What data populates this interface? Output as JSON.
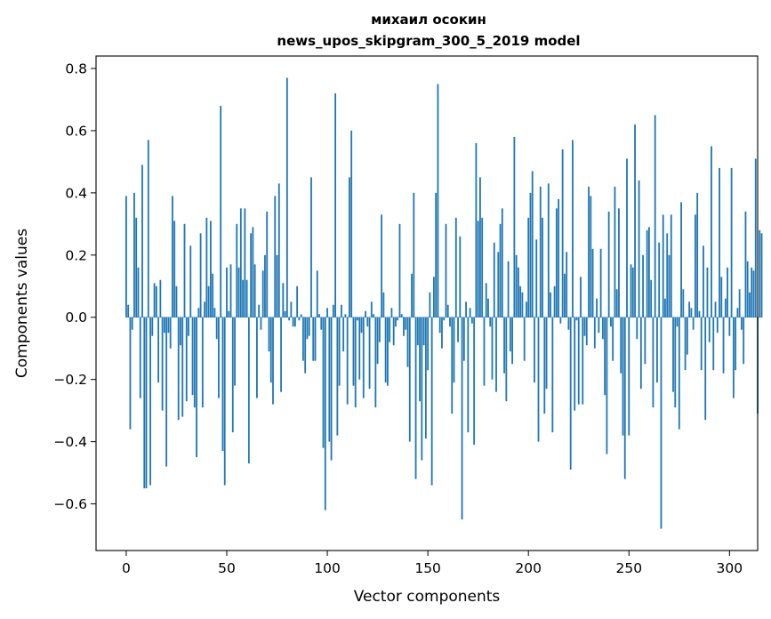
{
  "chart_data": {
    "type": "bar",
    "title": "михаил осокин",
    "subtitle": "news_upos_skipgram_300_5_2019 model",
    "xlabel": "Vector components",
    "ylabel": "Components values",
    "xlim": [
      -15,
      314
    ],
    "ylim": [
      -0.75,
      0.84
    ],
    "xticks": [
      0,
      50,
      100,
      150,
      200,
      250,
      300
    ],
    "xtick_labels": [
      "0",
      "50",
      "100",
      "150",
      "200",
      "250",
      "300"
    ],
    "yticks": [
      -0.6,
      -0.4,
      -0.2,
      0.0,
      0.2,
      0.4,
      0.6,
      0.8
    ],
    "ytick_labels": [
      "−0.6",
      "−0.4",
      "−0.2",
      "0.0",
      "0.2",
      "0.4",
      "0.6",
      "0.8"
    ],
    "grid": false,
    "bar_color": "#1f77b4",
    "series": [
      {
        "values": [
          0.39,
          0.04,
          -0.36,
          -0.04,
          0.4,
          0.32,
          0.16,
          -0.26,
          0.49,
          -0.55,
          -0.55,
          0.57,
          -0.54,
          -0.06,
          0.11,
          0.1,
          -0.21,
          0.12,
          -0.3,
          -0.05,
          -0.48,
          -0.05,
          -0.1,
          0.39,
          0.31,
          0.1,
          -0.33,
          -0.09,
          -0.32,
          0.3,
          -0.27,
          -0.06,
          0.23,
          -0.25,
          -0.29,
          -0.45,
          0.03,
          0.27,
          -0.29,
          0.05,
          0.32,
          0.1,
          0.31,
          0.14,
          0.03,
          -0.07,
          -0.26,
          0.68,
          -0.43,
          -0.54,
          0.16,
          0.02,
          0.17,
          -0.37,
          -0.22,
          0.3,
          0.16,
          0.35,
          0.12,
          0.35,
          0.12,
          -0.47,
          0.27,
          0.29,
          0.17,
          -0.26,
          0.04,
          -0.04,
          0.15,
          0.2,
          0.34,
          -0.11,
          -0.21,
          -0.28,
          0.39,
          0.2,
          0.43,
          -0.24,
          0.11,
          0.02,
          0.77,
          -0.01,
          0.05,
          -0.03,
          -0.03,
          0.1,
          -0.01,
          0.01,
          -0.14,
          -0.18,
          -0.07,
          -0.06,
          0.45,
          -0.14,
          -0.14,
          0.15,
          0.01,
          -0.04,
          -0.42,
          -0.62,
          0.03,
          -0.4,
          -0.46,
          0.04,
          0.72,
          -0.38,
          -0.22,
          0.04,
          -0.11,
          0.01,
          -0.28,
          0.45,
          0.6,
          -0.22,
          -0.29,
          -0.01,
          -0.2,
          -0.05,
          -0.26,
          0.02,
          -0.03,
          -0.23,
          0.05,
          0.01,
          -0.29,
          -0.15,
          -0.08,
          0.33,
          0.08,
          -0.21,
          -0.22,
          -0.08,
          0.03,
          -0.09,
          -0.03,
          -0.01,
          0.3,
          0.01,
          -0.06,
          -0.04,
          -0.16,
          -0.4,
          0.14,
          0.4,
          -0.52,
          -0.09,
          -0.27,
          -0.46,
          -0.09,
          -0.39,
          -0.17,
          0.08,
          -0.54,
          0.13,
          0.4,
          0.75,
          -0.05,
          -0.1,
          -0.01,
          0.3,
          0.04,
          -0.03,
          -0.31,
          -0.21,
          0.32,
          -0.08,
          0.26,
          -0.65,
          -0.14,
          0.05,
          -0.37,
          0.03,
          -0.02,
          -0.41,
          0.56,
          0.31,
          0.45,
          0.32,
          -0.22,
          0.11,
          0.06,
          -0.03,
          -0.2,
          0.24,
          -0.24,
          0.21,
          0.3,
          0.35,
          -0.18,
          -0.27,
          0.18,
          -0.11,
          -0.15,
          0.58,
          0.2,
          0.16,
          0.1,
          0.08,
          -0.14,
          0.05,
          0.32,
          0.4,
          0.47,
          -0.21,
          0.25,
          -0.4,
          0.42,
          0.32,
          -0.31,
          -0.23,
          0.43,
          0.08,
          -0.37,
          0.1,
          0.35,
          0.38,
          -0.02,
          0.54,
          0.14,
          0.21,
          -0.04,
          -0.49,
          0.57,
          -0.3,
          -0.01,
          -0.28,
          0.13,
          -0.28,
          -0.06,
          -0.09,
          0.42,
          0.39,
          0.22,
          -0.1,
          0.06,
          -0.05,
          0.22,
          -0.07,
          -0.25,
          -0.44,
          0.34,
          -0.03,
          -0.14,
          0.42,
          0.09,
          0.35,
          -0.18,
          -0.38,
          -0.52,
          0.51,
          -0.38,
          0.17,
          0.16,
          0.62,
          -0.07,
          0.44,
          -0.23,
          0.2,
          -0.15,
          0.28,
          0.29,
          0.12,
          -0.29,
          0.65,
          -0.21,
          0.24,
          -0.68,
          0.33,
          0.06,
          0.27,
          0.2,
          0.33,
          -0.24,
          -0.29,
          -0.03,
          -0.36,
          0.37,
          0.09,
          -0.17,
          -0.12,
          0.05,
          0.03,
          -0.04,
          0.33,
          0.4,
          0.02,
          -0.17,
          0.23,
          -0.33,
          0.16,
          -0.08,
          0.55,
          -0.17,
          0.05,
          -0.05,
          0.48,
          0.13,
          -0.18,
          0.06,
          0.16,
          -0.06,
          0.48,
          -0.26,
          -0.17,
          0.03,
          0.09,
          -0.04,
          -0.15,
          0.34,
          0.18,
          0.08,
          0.16,
          0.15,
          0.51,
          -0.31,
          0.28,
          0.27
        ]
      }
    ]
  }
}
